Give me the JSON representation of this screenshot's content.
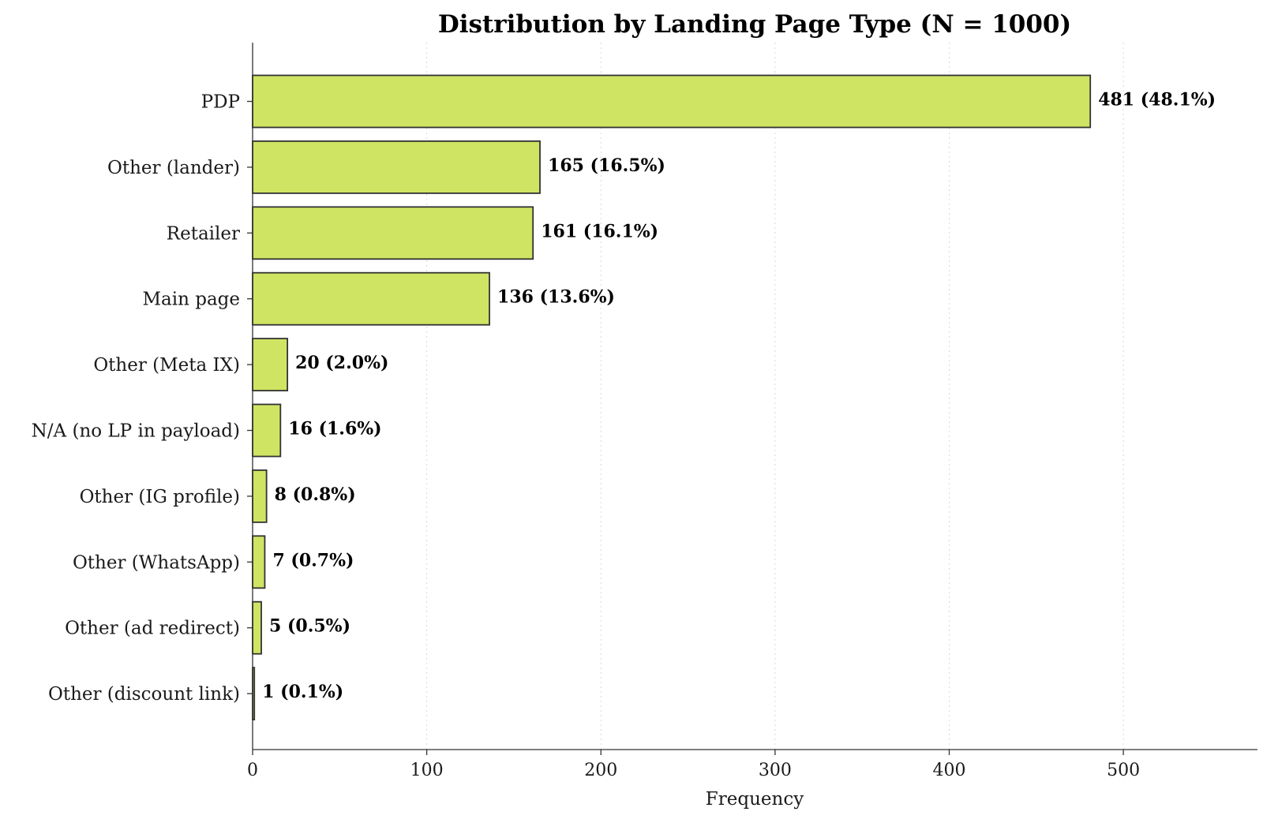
{
  "chart_data": {
    "type": "bar",
    "orientation": "horizontal",
    "title": "Distribution by Landing Page Type (N = 1000)",
    "xlabel": "Frequency",
    "ylabel": "",
    "categories": [
      "PDP",
      "Other (lander)",
      "Retailer",
      "Main page",
      "Other (Meta IX)",
      "N/A (no LP in payload)",
      "Other (IG profile)",
      "Other (WhatsApp)",
      "Other (ad redirect)",
      "Other (discount link)"
    ],
    "values": [
      481,
      165,
      161,
      136,
      20,
      16,
      8,
      7,
      5,
      1
    ],
    "data_labels": [
      "481 (48.1%)",
      "165 (16.5%)",
      "161 (16.1%)",
      "136 (13.6%)",
      "20 (2.0%)",
      "16 (1.6%)",
      "8 (0.8%)",
      "7 (0.7%)",
      "5 (0.5%)",
      "1 (0.1%)"
    ],
    "xlim": [
      0,
      577
    ],
    "xticks": [
      0,
      100,
      200,
      300,
      400,
      500
    ],
    "xtick_labels": [
      "0",
      "100",
      "200",
      "300",
      "400",
      "500"
    ],
    "grid": "x-axis dotted",
    "legend": "none",
    "bar_color": "#cfe463",
    "edge_color": "#333333"
  }
}
